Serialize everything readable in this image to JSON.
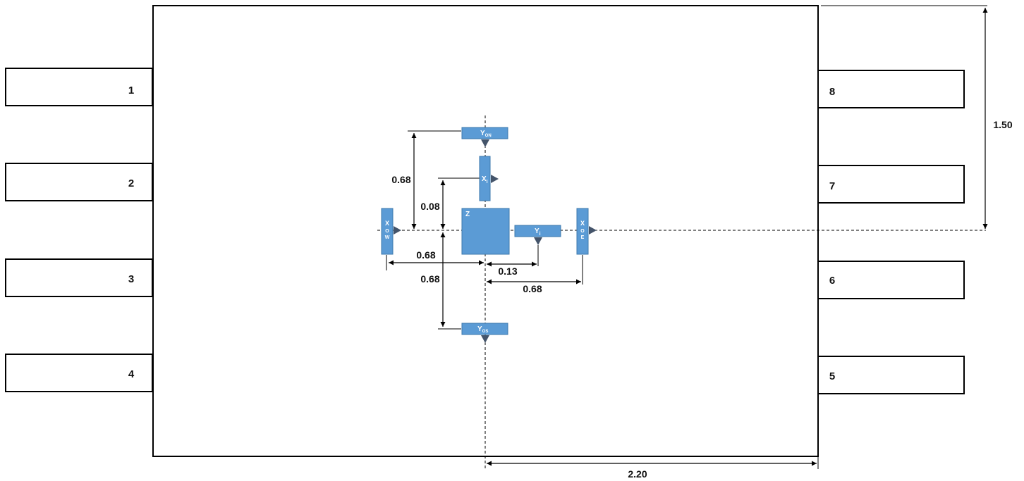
{
  "colors": {
    "sensor": "#5b9bd5",
    "line": "#000000",
    "text": "#111111"
  },
  "pins": [
    {
      "label": "1"
    },
    {
      "label": "2"
    },
    {
      "label": "3"
    },
    {
      "label": "4"
    },
    {
      "label": "5"
    },
    {
      "label": "6"
    },
    {
      "label": "7"
    },
    {
      "label": "8"
    }
  ],
  "sensors": {
    "z": "Z",
    "y_on": {
      "main": "Y",
      "sub": "ON"
    },
    "x_i": {
      "main": "X",
      "sub": "i"
    },
    "y_i": {
      "main": "Y",
      "sub": "i"
    },
    "x_ow": {
      "l1": "X",
      "l2": "O",
      "l3": "W"
    },
    "x_oe": {
      "l1": "X",
      "l2": "O",
      "l3": "E"
    },
    "y_os": {
      "main": "Y",
      "sub": "OS"
    }
  },
  "dimensions": {
    "y_on_offset": "0.68",
    "x_i_offset": "0.08",
    "x_ow_offset": "0.68",
    "y_i_offset": "0.13",
    "y_os_offset": "0.68",
    "x_oe_offset": "0.68",
    "package_half_height": "1.50",
    "package_half_width": "2.20"
  }
}
